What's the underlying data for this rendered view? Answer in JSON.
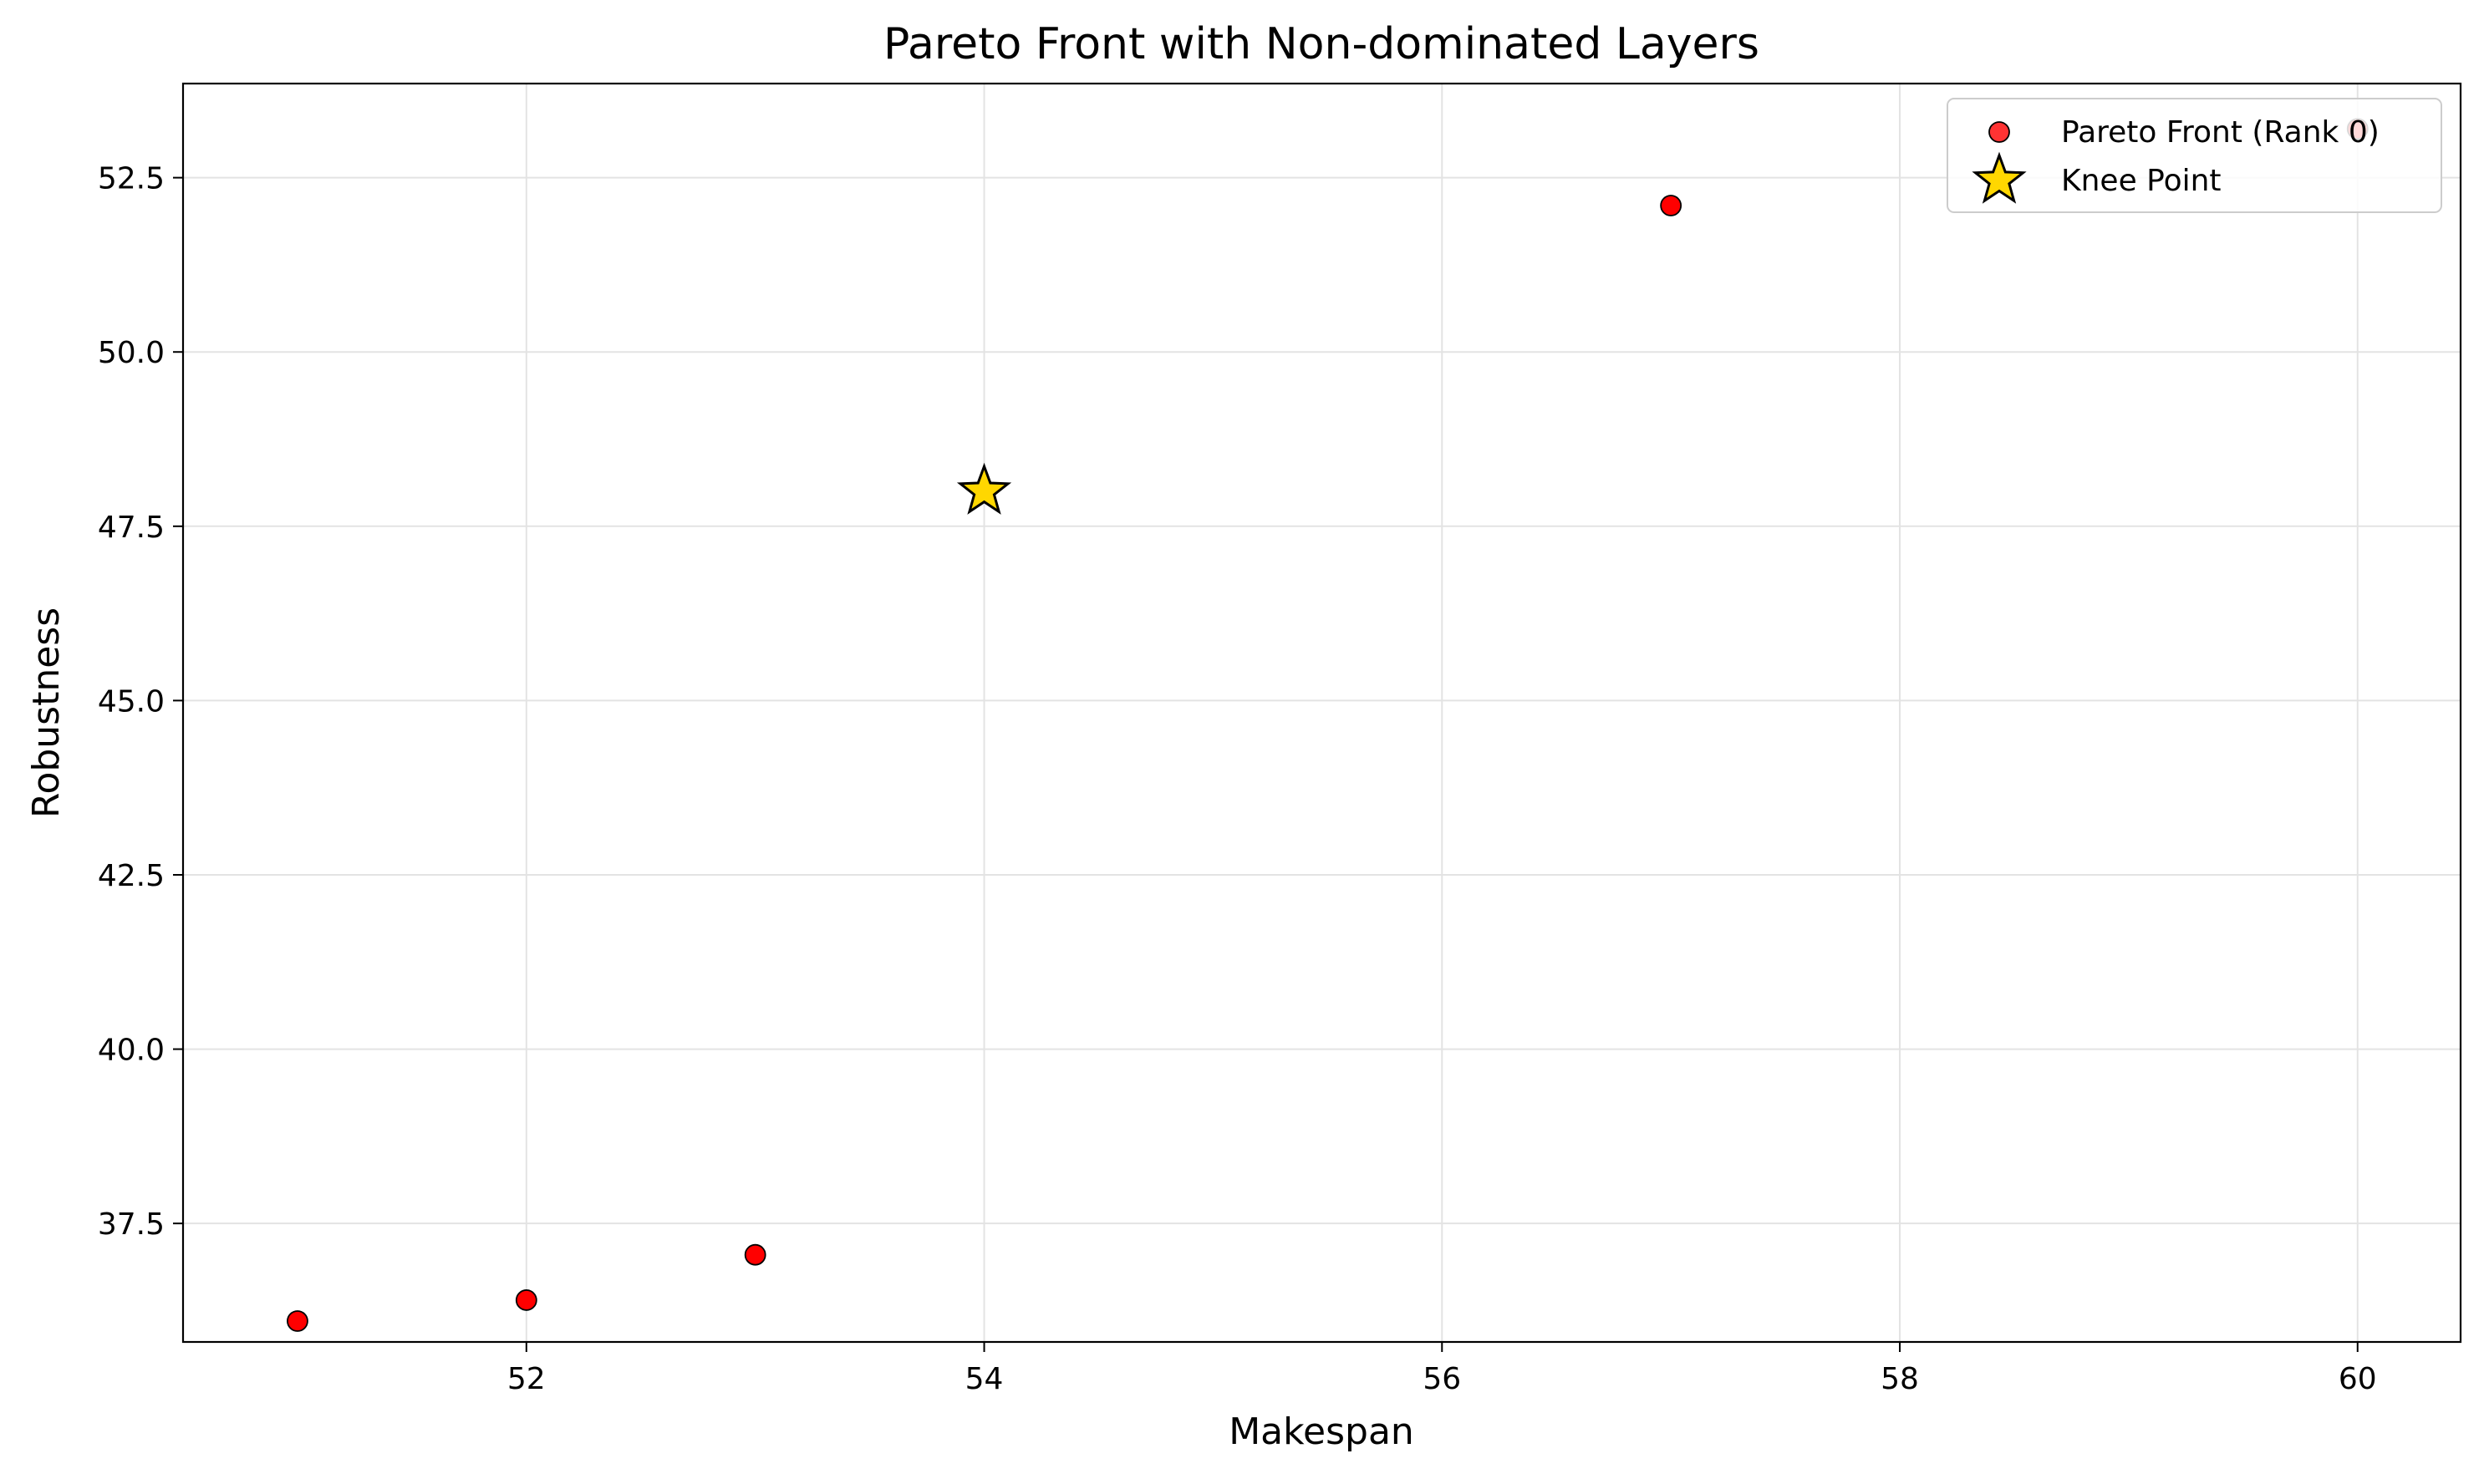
{
  "chart_data": {
    "type": "scatter",
    "title": "Pareto Front with Non-dominated Layers",
    "xlabel": "Makespan",
    "ylabel": "Robustness",
    "xlim": [
      50.5,
      60.45
    ],
    "ylim": [
      35.8,
      53.85
    ],
    "x_ticks": [
      52,
      54,
      56,
      58,
      60
    ],
    "x_tick_labels": [
      "52",
      "54",
      "56",
      "58",
      "60"
    ],
    "y_ticks": [
      37.5,
      40.0,
      42.5,
      45.0,
      47.5,
      50.0,
      52.5
    ],
    "y_tick_labels": [
      "37.5",
      "40.0",
      "42.5",
      "45.0",
      "47.5",
      "50.0",
      "52.5"
    ],
    "grid": true,
    "legend_position": "top-right",
    "series": [
      {
        "name": "Pareto Front (Rank 0)",
        "marker": "circle",
        "color": "#ff0000",
        "edge_color": "#000000",
        "points": [
          {
            "x": 51,
            "y": 36.1
          },
          {
            "x": 52,
            "y": 36.4
          },
          {
            "x": 53,
            "y": 37.05
          },
          {
            "x": 54,
            "y": 48.0
          },
          {
            "x": 57,
            "y": 52.1
          },
          {
            "x": 60,
            "y": 53.2
          }
        ]
      },
      {
        "name": "Knee Point",
        "marker": "star",
        "color": "#ffd700",
        "edge_color": "#000000",
        "points": [
          {
            "x": 54,
            "y": 48.0
          }
        ]
      }
    ]
  }
}
